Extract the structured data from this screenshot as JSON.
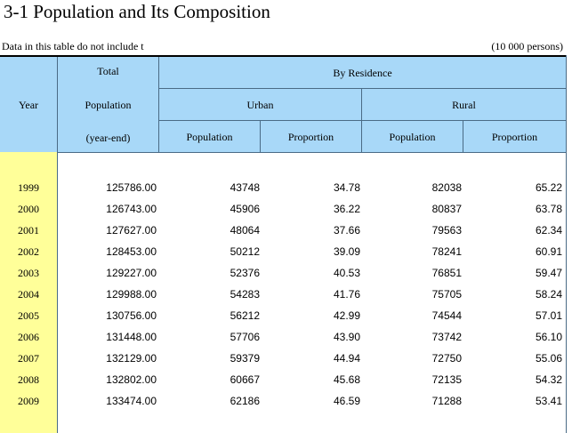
{
  "title": "3-1 Population and Its Composition",
  "note": "Data in this table do not include t",
  "unit": "(10 000 persons)",
  "header": {
    "year": "Year",
    "total_line1": "Total",
    "total_line2": "Population",
    "total_line3": "(year-end)",
    "by_residence": "By Residence",
    "urban": "Urban",
    "rural": "Rural",
    "urban_population": "Population",
    "urban_proportion": "Proportion",
    "rural_population": "Population",
    "rural_proportion": "Proportion"
  },
  "rows": [
    {
      "year": "1999",
      "total": "125786.00",
      "urban_pop": "43748",
      "urban_prop": "34.78",
      "rural_pop": "82038",
      "rural_prop": "65.22"
    },
    {
      "year": "2000",
      "total": "126743.00",
      "urban_pop": "45906",
      "urban_prop": "36.22",
      "rural_pop": "80837",
      "rural_prop": "63.78"
    },
    {
      "year": "2001",
      "total": "127627.00",
      "urban_pop": "48064",
      "urban_prop": "37.66",
      "rural_pop": "79563",
      "rural_prop": "62.34"
    },
    {
      "year": "2002",
      "total": "128453.00",
      "urban_pop": "50212",
      "urban_prop": "39.09",
      "rural_pop": "78241",
      "rural_prop": "60.91"
    },
    {
      "year": "2003",
      "total": "129227.00",
      "urban_pop": "52376",
      "urban_prop": "40.53",
      "rural_pop": "76851",
      "rural_prop": "59.47"
    },
    {
      "year": "2004",
      "total": "129988.00",
      "urban_pop": "54283",
      "urban_prop": "41.76",
      "rural_pop": "75705",
      "rural_prop": "58.24"
    },
    {
      "year": "2005",
      "total": "130756.00",
      "urban_pop": "56212",
      "urban_prop": "42.99",
      "rural_pop": "74544",
      "rural_prop": "57.01"
    },
    {
      "year": "2006",
      "total": "131448.00",
      "urban_pop": "57706",
      "urban_prop": "43.90",
      "rural_pop": "73742",
      "rural_prop": "56.10"
    },
    {
      "year": "2007",
      "total": "132129.00",
      "urban_pop": "59379",
      "urban_prop": "44.94",
      "rural_pop": "72750",
      "rural_prop": "55.06"
    },
    {
      "year": "2008",
      "total": "132802.00",
      "urban_pop": "60667",
      "urban_prop": "45.68",
      "rural_pop": "72135",
      "rural_prop": "54.32"
    },
    {
      "year": "2009",
      "total": "133474.00",
      "urban_pop": "62186",
      "urban_prop": "46.59",
      "rural_pop": "71288",
      "rural_prop": "53.41"
    }
  ]
}
